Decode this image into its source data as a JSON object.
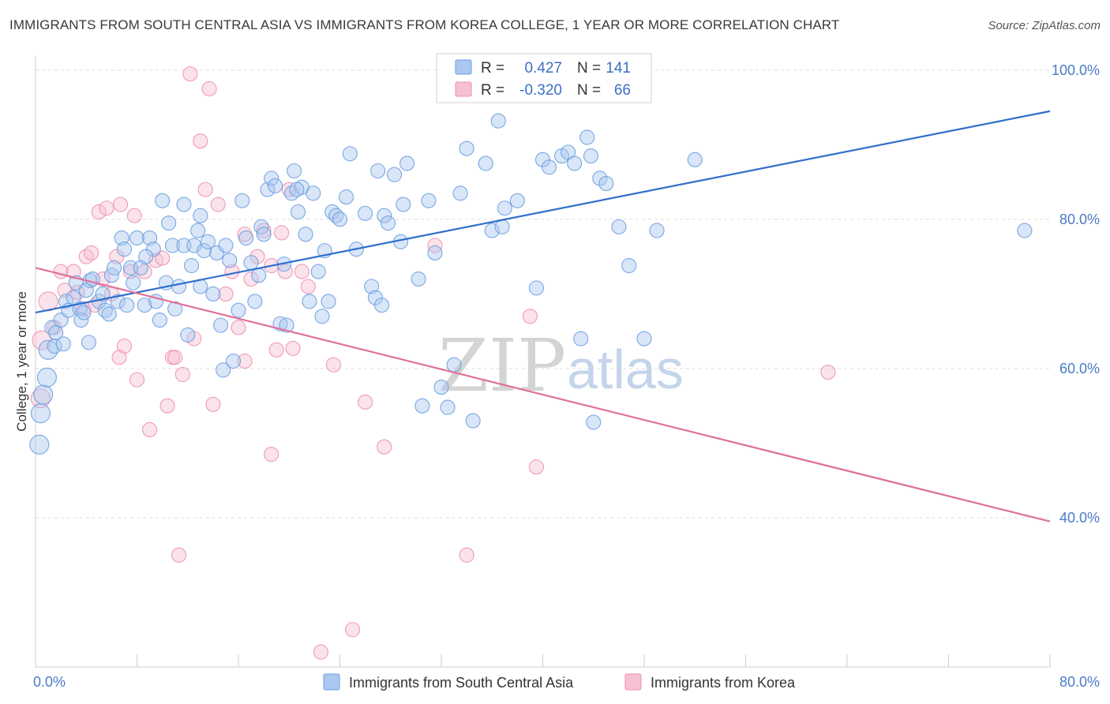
{
  "title": "IMMIGRANTS FROM SOUTH CENTRAL ASIA VS IMMIGRANTS FROM KOREA COLLEGE, 1 YEAR OR MORE CORRELATION CHART",
  "source": "Source: ZipAtlas.com",
  "watermark": {
    "zip": "ZIP",
    "atlas": "atlas"
  },
  "colors": {
    "blue": "#6a9fe0",
    "blue_fill": "#aac8f0",
    "blue_line": "#2f6fce",
    "pink": "#ee8fb0",
    "pink_fill": "#f7c0d3",
    "pink_line": "#e0709a",
    "grid": "#dddddd",
    "tick_text": "#4a7bc8"
  },
  "legend_box": {
    "rows": [
      {
        "r_label": "R =",
        "r_value": "0.427",
        "n_label": "N =",
        "n_value": "141"
      },
      {
        "r_label": "R =",
        "r_value": "-0.320",
        "n_label": "N =",
        "n_value": "66"
      }
    ]
  },
  "chart_data": {
    "type": "scatter",
    "title": "IMMIGRANTS FROM SOUTH CENTRAL ASIA VS IMMIGRANTS FROM KOREA COLLEGE, 1 YEAR OR MORE CORRELATION CHART",
    "xlabel": "",
    "ylabel": "College, 1 year or more",
    "xlim": [
      0,
      80
    ],
    "ylim": [
      20,
      102
    ],
    "x_tick_labels": [
      {
        "value": 0,
        "label": "0.0%"
      },
      {
        "value": 80,
        "label": "80.0%"
      }
    ],
    "y_tick_labels": [
      {
        "value": 100,
        "label": "100.0%"
      },
      {
        "value": 80,
        "label": "80.0%"
      },
      {
        "value": 60,
        "label": "60.0%"
      },
      {
        "value": 40,
        "label": "40.0%"
      }
    ],
    "x_minor_ticks": [
      8,
      16,
      24,
      32,
      40,
      48,
      56,
      64,
      72,
      80
    ],
    "grid": true,
    "legend_placement": "top-center",
    "series": [
      {
        "name": "Immigrants from South Central Asia",
        "color": "#6a9fe0",
        "R": 0.427,
        "N": 141,
        "trend": {
          "x": [
            0,
            80
          ],
          "y": [
            67.5,
            94.5
          ]
        },
        "points": [
          [
            0.3,
            49.8
          ],
          [
            0.4,
            54.0
          ],
          [
            0.6,
            56.5
          ],
          [
            0.9,
            58.8
          ],
          [
            1.0,
            62.5
          ],
          [
            1.3,
            65.5
          ],
          [
            1.5,
            63.0
          ],
          [
            1.6,
            64.8
          ],
          [
            2.0,
            66.5
          ],
          [
            2.2,
            63.3
          ],
          [
            2.4,
            69.0
          ],
          [
            2.6,
            67.8
          ],
          [
            3.0,
            69.5
          ],
          [
            3.2,
            71.5
          ],
          [
            3.5,
            68.0
          ],
          [
            3.6,
            66.5
          ],
          [
            3.8,
            67.5
          ],
          [
            4.0,
            70.5
          ],
          [
            4.2,
            63.5
          ],
          [
            4.3,
            71.8
          ],
          [
            4.5,
            72.0
          ],
          [
            5.0,
            69.0
          ],
          [
            5.3,
            70.0
          ],
          [
            5.5,
            67.8
          ],
          [
            5.8,
            67.3
          ],
          [
            6.0,
            72.5
          ],
          [
            6.2,
            73.5
          ],
          [
            6.5,
            69.0
          ],
          [
            6.8,
            77.5
          ],
          [
            7.0,
            76.0
          ],
          [
            7.2,
            68.5
          ],
          [
            7.5,
            73.5
          ],
          [
            7.7,
            71.5
          ],
          [
            8.0,
            77.5
          ],
          [
            8.3,
            73.5
          ],
          [
            8.6,
            68.5
          ],
          [
            9.0,
            77.5
          ],
          [
            9.3,
            76.0
          ],
          [
            9.5,
            69.0
          ],
          [
            9.8,
            66.5
          ],
          [
            10.0,
            82.5
          ],
          [
            10.3,
            71.5
          ],
          [
            10.5,
            79.5
          ],
          [
            10.8,
            76.5
          ],
          [
            11.0,
            68.0
          ],
          [
            11.3,
            71.0
          ],
          [
            11.7,
            76.5
          ],
          [
            12.0,
            64.5
          ],
          [
            12.3,
            73.8
          ],
          [
            12.5,
            76.5
          ],
          [
            12.8,
            78.5
          ],
          [
            13.0,
            80.5
          ],
          [
            13.3,
            75.8
          ],
          [
            13.6,
            77.0
          ],
          [
            14.0,
            70.0
          ],
          [
            14.3,
            75.5
          ],
          [
            14.6,
            65.8
          ],
          [
            14.8,
            59.8
          ],
          [
            15.0,
            76.5
          ],
          [
            15.3,
            74.5
          ],
          [
            15.6,
            61.0
          ],
          [
            16.0,
            67.8
          ],
          [
            16.3,
            82.5
          ],
          [
            16.6,
            77.5
          ],
          [
            17.0,
            74.2
          ],
          [
            17.3,
            69.0
          ],
          [
            17.6,
            72.5
          ],
          [
            17.8,
            79.0
          ],
          [
            18.0,
            78.0
          ],
          [
            18.3,
            84.0
          ],
          [
            18.6,
            85.5
          ],
          [
            18.9,
            84.5
          ],
          [
            19.3,
            66.0
          ],
          [
            19.6,
            74.0
          ],
          [
            19.8,
            65.8
          ],
          [
            20.2,
            83.5
          ],
          [
            20.4,
            86.5
          ],
          [
            20.7,
            81.0
          ],
          [
            21.0,
            84.3
          ],
          [
            21.3,
            78.0
          ],
          [
            21.6,
            69.0
          ],
          [
            21.9,
            83.5
          ],
          [
            22.3,
            73.0
          ],
          [
            22.6,
            67.0
          ],
          [
            22.8,
            75.8
          ],
          [
            23.1,
            69.0
          ],
          [
            23.4,
            81.0
          ],
          [
            23.7,
            80.5
          ],
          [
            24.0,
            80.0
          ],
          [
            24.5,
            83.0
          ],
          [
            24.8,
            88.8
          ],
          [
            25.3,
            76.0
          ],
          [
            26.0,
            80.8
          ],
          [
            26.5,
            71.0
          ],
          [
            26.8,
            69.5
          ],
          [
            27.0,
            86.5
          ],
          [
            27.5,
            80.5
          ],
          [
            27.8,
            79.5
          ],
          [
            28.3,
            86.0
          ],
          [
            28.8,
            77.0
          ],
          [
            29.0,
            82.0
          ],
          [
            29.3,
            87.5
          ],
          [
            30.2,
            72.0
          ],
          [
            30.5,
            55.0
          ],
          [
            31.0,
            82.5
          ],
          [
            31.5,
            75.5
          ],
          [
            32.0,
            57.5
          ],
          [
            32.5,
            54.8
          ],
          [
            33.0,
            60.5
          ],
          [
            33.5,
            83.5
          ],
          [
            34.0,
            89.5
          ],
          [
            34.5,
            53.0
          ],
          [
            35.5,
            87.5
          ],
          [
            36.0,
            78.5
          ],
          [
            36.5,
            93.2
          ],
          [
            37.0,
            81.5
          ],
          [
            38.0,
            82.5
          ],
          [
            39.5,
            70.8
          ],
          [
            40.0,
            88.0
          ],
          [
            40.5,
            87.0
          ],
          [
            41.5,
            88.5
          ],
          [
            42.0,
            89.0
          ],
          [
            42.5,
            87.5
          ],
          [
            43.0,
            64.0
          ],
          [
            43.5,
            91.0
          ],
          [
            43.8,
            88.5
          ],
          [
            44.0,
            52.8
          ],
          [
            44.5,
            85.5
          ],
          [
            45.0,
            84.8
          ],
          [
            46.0,
            79.0
          ],
          [
            46.8,
            73.8
          ],
          [
            48.0,
            64.0
          ],
          [
            49.0,
            78.5
          ],
          [
            52.0,
            88.0
          ],
          [
            78.0,
            78.5
          ],
          [
            20.6,
            84.0
          ],
          [
            13.0,
            71.0
          ],
          [
            36.8,
            79.0
          ],
          [
            8.7,
            75.0
          ],
          [
            11.7,
            82.0
          ],
          [
            27.3,
            68.5
          ]
        ]
      },
      {
        "name": "Immigrants from Korea",
        "color": "#ee8fb0",
        "R": -0.32,
        "N": 66,
        "trend": {
          "x": [
            0,
            80
          ],
          "y": [
            73.5,
            39.5
          ]
        },
        "points": [
          [
            0.4,
            56.0
          ],
          [
            0.5,
            63.8
          ],
          [
            1.0,
            69.0
          ],
          [
            1.5,
            65.5
          ],
          [
            2.0,
            73.0
          ],
          [
            2.3,
            70.5
          ],
          [
            3.0,
            73.0
          ],
          [
            3.3,
            70.2
          ],
          [
            3.8,
            68.0
          ],
          [
            4.0,
            75.0
          ],
          [
            4.4,
            75.5
          ],
          [
            4.7,
            68.5
          ],
          [
            5.0,
            81.0
          ],
          [
            5.3,
            72.0
          ],
          [
            5.6,
            81.5
          ],
          [
            6.0,
            70.0
          ],
          [
            6.4,
            75.0
          ],
          [
            6.7,
            82.0
          ],
          [
            7.0,
            63.0
          ],
          [
            7.5,
            73.0
          ],
          [
            7.8,
            80.5
          ],
          [
            8.0,
            58.5
          ],
          [
            8.6,
            73.0
          ],
          [
            9.0,
            51.8
          ],
          [
            9.5,
            74.5
          ],
          [
            10.0,
            74.8
          ],
          [
            10.4,
            55.0
          ],
          [
            10.8,
            61.5
          ],
          [
            11.3,
            35.0
          ],
          [
            11.6,
            59.2
          ],
          [
            12.2,
            99.5
          ],
          [
            12.5,
            64.0
          ],
          [
            13.0,
            90.5
          ],
          [
            13.4,
            84.0
          ],
          [
            13.7,
            97.5
          ],
          [
            14.0,
            55.2
          ],
          [
            14.4,
            82.0
          ],
          [
            15.0,
            70.0
          ],
          [
            15.5,
            73.0
          ],
          [
            16.0,
            65.5
          ],
          [
            16.5,
            78.0
          ],
          [
            17.0,
            72.0
          ],
          [
            17.5,
            75.0
          ],
          [
            18.0,
            78.5
          ],
          [
            18.6,
            48.5
          ],
          [
            19.0,
            62.5
          ],
          [
            19.4,
            78.2
          ],
          [
            19.7,
            73.0
          ],
          [
            20.0,
            84.0
          ],
          [
            20.3,
            62.7
          ],
          [
            21.0,
            73.0
          ],
          [
            21.5,
            71.0
          ],
          [
            22.5,
            22.0
          ],
          [
            23.5,
            60.5
          ],
          [
            25.0,
            25.0
          ],
          [
            26.0,
            55.5
          ],
          [
            27.5,
            49.5
          ],
          [
            31.5,
            76.5
          ],
          [
            34.0,
            35.0
          ],
          [
            39.0,
            67.0
          ],
          [
            39.5,
            46.8
          ],
          [
            62.5,
            59.5
          ],
          [
            16.5,
            61.0
          ],
          [
            11.0,
            61.5
          ],
          [
            6.6,
            61.5
          ],
          [
            18.6,
            73.8
          ]
        ]
      }
    ]
  }
}
